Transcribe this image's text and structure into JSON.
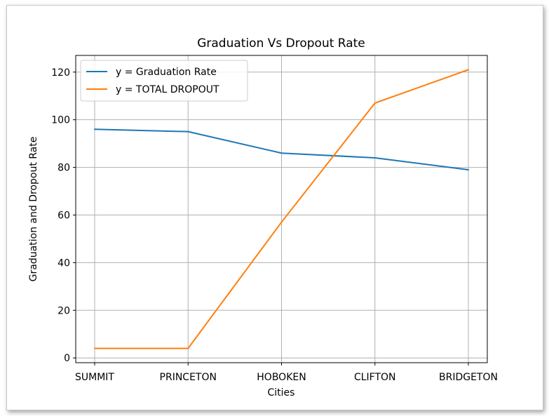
{
  "chart_data": {
    "type": "line",
    "title": "Graduation Vs Dropout Rate",
    "xlabel": "Cities",
    "ylabel": "Graduation and Dropout Rate",
    "categories": [
      "SUMMIT",
      "PRINCETON",
      "HOBOKEN",
      "CLIFTON",
      "BRIDGETON"
    ],
    "yticks": [
      0,
      20,
      40,
      60,
      80,
      100,
      120
    ],
    "ylim": [
      -2,
      127
    ],
    "grid": true,
    "legend_position": "top-left",
    "series": [
      {
        "name": "y = Graduation Rate",
        "color": "#1f77b4",
        "values": [
          96,
          95,
          86,
          84,
          79
        ]
      },
      {
        "name": "y = TOTAL DROPOUT",
        "color": "#ff7f0e",
        "values": [
          4,
          4,
          57,
          107,
          121
        ]
      }
    ]
  }
}
